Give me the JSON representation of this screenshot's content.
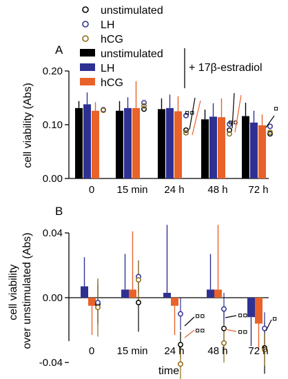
{
  "figure": {
    "legend": {
      "circles": [
        {
          "label": "unstimulated",
          "color": "#000000"
        },
        {
          "label": "LH",
          "color": "#2e3192"
        },
        {
          "label": "hCG",
          "color": "#8b6914"
        }
      ],
      "bars": [
        {
          "label": "unstimulated",
          "color": "#000000"
        },
        {
          "label": "LH",
          "color": "#2e3192"
        },
        {
          "label": "hCG",
          "color": "#e8622a"
        }
      ],
      "bracket_label": "+ 17β-estradiol"
    },
    "significance_symbol": "¤"
  },
  "chart_data": [
    {
      "panel": "A",
      "type": "bar",
      "ylabel": "cell viability (Abs)",
      "ylim": [
        0,
        0.2
      ],
      "yticks": [
        "0.00",
        "0.10",
        "0.20"
      ],
      "ytick_values": [
        0,
        0.1,
        0.2
      ],
      "categories": [
        "0",
        "15 min",
        "24 h",
        "48 h",
        "72 h"
      ],
      "series": [
        {
          "name": "unstimulated",
          "kind": "bar",
          "color": "#000000",
          "values": [
            0.131,
            0.126,
            0.129,
            0.11,
            0.116
          ],
          "err": [
            0.013,
            0.018,
            0.02,
            0.018,
            0.025
          ]
        },
        {
          "name": "LH",
          "kind": "bar",
          "color": "#2e3192",
          "values": [
            0.138,
            0.131,
            0.131,
            0.115,
            0.104
          ],
          "err": [
            0.022,
            0.02,
            0.025,
            0.025,
            0.022
          ]
        },
        {
          "name": "hCG",
          "kind": "bar",
          "color": "#e8622a",
          "values": [
            0.126,
            0.131,
            0.125,
            0.114,
            0.099
          ],
          "err": [
            0.016,
            0.05,
            0.028,
            0.035,
            0.02
          ]
        },
        {
          "name": "unstimulated",
          "kind": "point",
          "color": "#000000",
          "values": [
            0.127,
            0.129,
            0.09,
            0.09,
            0.083
          ]
        },
        {
          "name": "LH",
          "kind": "point",
          "color": "#2e3192",
          "values": [
            0.128,
            0.141,
            0.117,
            0.101,
            0.097
          ]
        },
        {
          "name": "hCG",
          "kind": "point",
          "color": "#8b6914",
          "values": [
            0.127,
            0.135,
            0.085,
            0.083,
            0.086
          ]
        }
      ],
      "significance_at": [
        "24 h",
        "48 h",
        "72 h"
      ]
    },
    {
      "panel": "B",
      "type": "bar",
      "xlabel": "time",
      "ylabel": "cell viability over unstimulated (Abs)",
      "ylabel_lines": [
        "cell viability",
        "over unstimulated (Abs)"
      ],
      "ylim": [
        -0.04,
        0.06
      ],
      "yticks": [
        "0.04",
        "0.00",
        "-0.04"
      ],
      "ytick_values": [
        0.04,
        0,
        -0.04
      ],
      "categories": [
        "0",
        "15 min",
        "24 h",
        "48 h",
        "72 h"
      ],
      "series": [
        {
          "name": "LH",
          "kind": "bar",
          "color": "#2e3192",
          "values": [
            0.007,
            0.005,
            0.003,
            0.005,
            -0.012
          ],
          "err": [
            0.018,
            0.022,
            0.042,
            0.022,
            0.018
          ]
        },
        {
          "name": "hCG",
          "kind": "bar",
          "color": "#e8622a",
          "values": [
            -0.005,
            0.005,
            -0.005,
            0.005,
            -0.016
          ],
          "err": [
            0.018,
            0.036,
            0.018,
            0.04,
            0.016
          ]
        },
        {
          "name": "unstimulated",
          "kind": "point",
          "color": "#000000",
          "values": [
            -0.004,
            -0.003,
            -0.029,
            -0.019,
            -0.031
          ],
          "err": [
            0.012,
            0.018,
            0.008,
            0.012,
            0.016
          ]
        },
        {
          "name": "LH",
          "kind": "point",
          "color": "#2e3192",
          "values": [
            -0.003,
            0.013,
            -0.01,
            -0.007,
            -0.019
          ],
          "err": [
            0.014,
            0.01,
            0.01,
            0.01,
            0.01
          ]
        },
        {
          "name": "hCG",
          "kind": "point",
          "color": "#8b6914",
          "values": [
            -0.006,
            0.011,
            -0.041,
            -0.028,
            -0.032
          ],
          "err": [
            0.018,
            0.012,
            0.01,
            0.012,
            0.01
          ]
        }
      ],
      "significance_at": [
        "24 h",
        "48 h",
        "72 h"
      ]
    }
  ]
}
